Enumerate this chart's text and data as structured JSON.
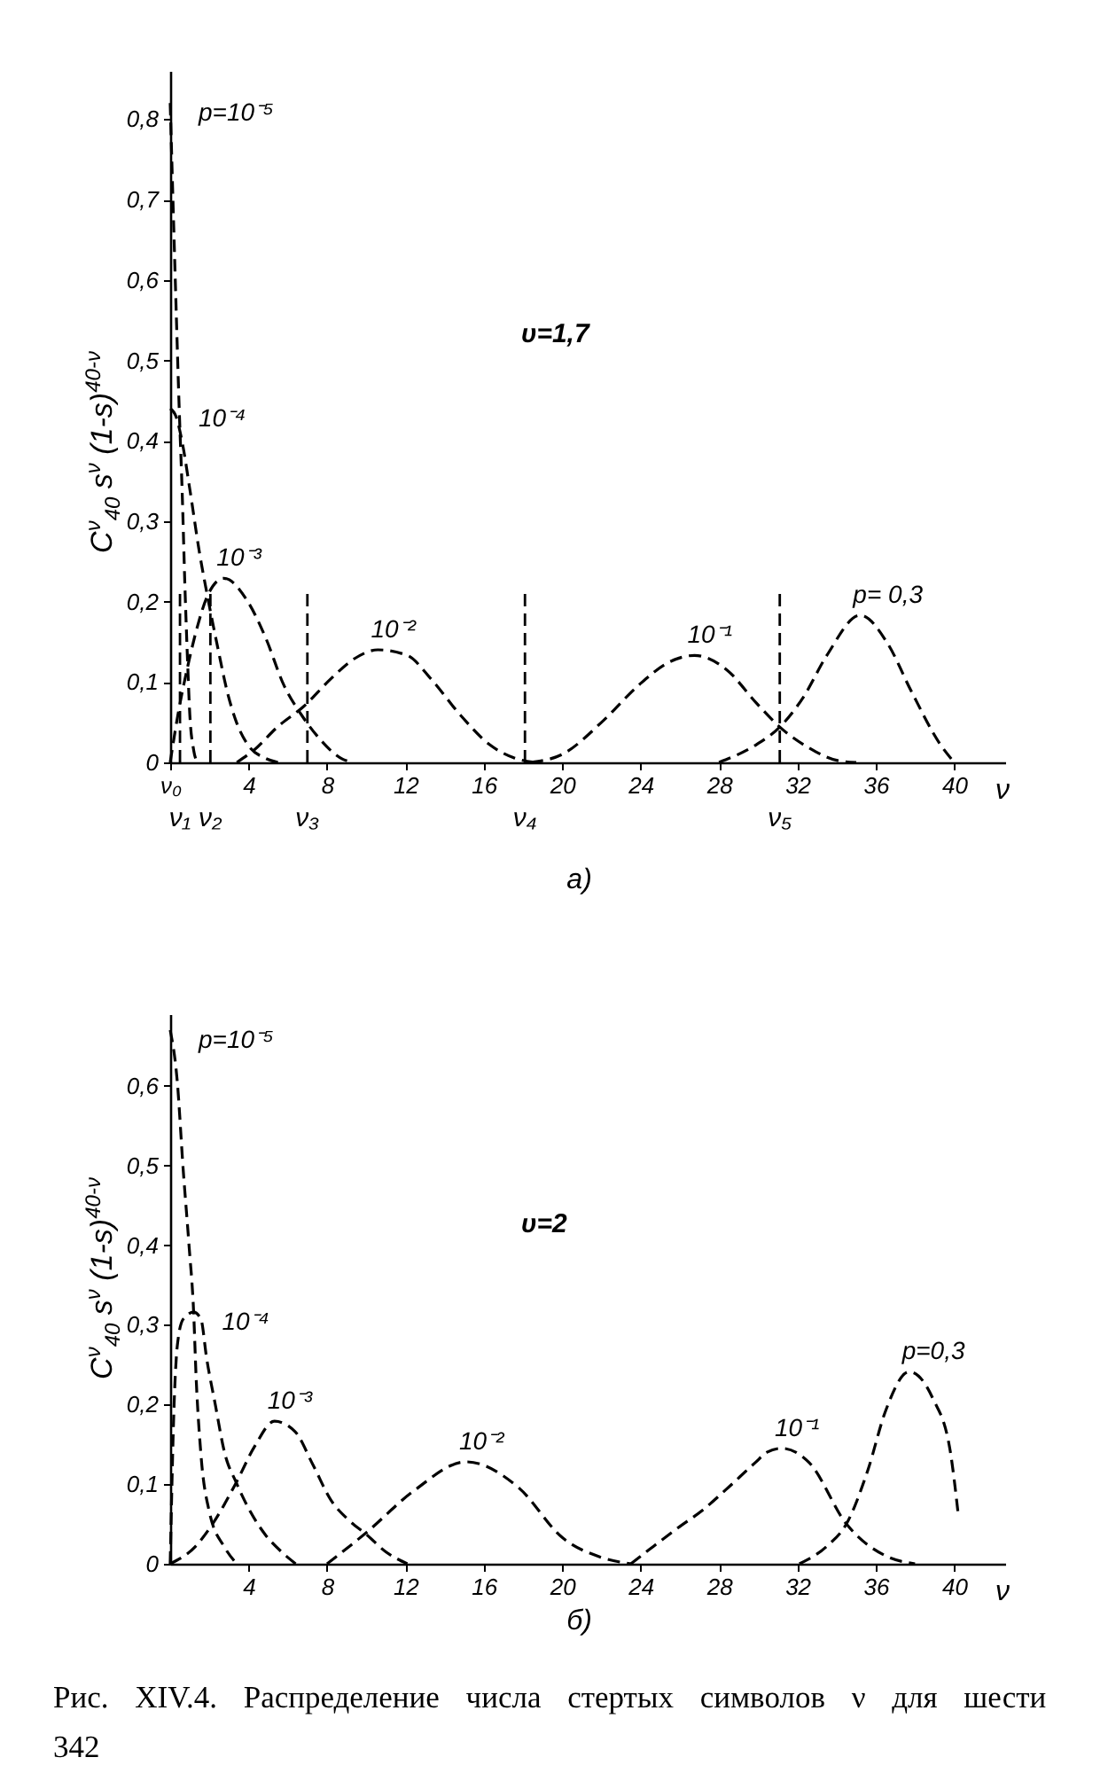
{
  "chart_data": [
    {
      "type": "line",
      "title": "а)",
      "subtitle": "υ=1,7",
      "xlabel": "ν",
      "ylabel": "C$^{ν}$$_{40}$ s$^{ν}$ (1-s)$^{40-ν}$",
      "xlim": [
        0,
        42.6
      ],
      "xticks": [
        {
          "value": 0,
          "label": "ν₀"
        },
        4,
        8,
        12,
        16,
        20,
        24,
        28,
        32,
        36,
        40
      ],
      "ylim": [
        0,
        0.86
      ],
      "yticks": [
        0,
        {
          "value": 0.1,
          "label": "0,1"
        },
        {
          "value": 0.2,
          "label": "0,2"
        },
        {
          "value": 0.3,
          "label": "0,3"
        },
        {
          "value": 0.4,
          "label": "0,4"
        },
        {
          "value": 0.5,
          "label": "0,5"
        },
        {
          "value": 0.6,
          "label": "0,6"
        },
        {
          "value": 0.7,
          "label": "0,7"
        },
        {
          "value": 0.8,
          "label": "0,8"
        }
      ],
      "grid": false,
      "marker": "none",
      "line_style": "dashed",
      "series": [
        {
          "name": "p=10⁻⁵",
          "color": "#000000",
          "x": [
            0,
            0.2,
            0.46,
            0.62,
            0.75,
            0.88,
            1.0,
            1.2,
            1.4
          ],
          "values": [
            0.82,
            0.65,
            0.44,
            0.33,
            0.22,
            0.13,
            0.06,
            0.015,
            0
          ]
        },
        {
          "name": "10⁻⁴",
          "color": "#000000",
          "x": [
            0,
            0.3,
            0.6,
            1.0,
            1.5,
            1.9,
            2.45,
            2.9,
            3.35,
            3.96,
            4.87,
            5.5
          ],
          "values": [
            0.44,
            0.43,
            0.4,
            0.34,
            0.26,
            0.207,
            0.14,
            0.089,
            0.052,
            0.022,
            0.005,
            0
          ]
        },
        {
          "name": "10⁻³",
          "color": "#000000",
          "x": [
            0,
            0.4,
            0.9,
            1.4,
            1.9,
            2.73,
            3.96,
            4.87,
            5.8,
            6.7,
            7.6,
            8.8,
            9.3
          ],
          "values": [
            0,
            0.06,
            0.12,
            0.17,
            0.207,
            0.229,
            0.2,
            0.155,
            0.096,
            0.059,
            0.03,
            0.004,
            0
          ]
        },
        {
          "name": "10⁻²",
          "color": "#000000",
          "x": [
            3.4,
            4.26,
            5.47,
            6.83,
            8.2,
            9.4,
            10.6,
            12.1,
            13.3,
            14.8,
            16.3,
            17.5,
            18.6
          ],
          "values": [
            0,
            0.015,
            0.044,
            0.07,
            0.104,
            0.129,
            0.14,
            0.133,
            0.104,
            0.059,
            0.022,
            0.006,
            0
          ]
        },
        {
          "name": "10⁻¹",
          "color": "#000000",
          "x": [
            18.4,
            20,
            22.1,
            23.9,
            25.4,
            26.75,
            28.4,
            29.9,
            31.1,
            32.6,
            34.1,
            35
          ],
          "values": [
            0,
            0.01,
            0.052,
            0.096,
            0.124,
            0.133,
            0.115,
            0.074,
            0.044,
            0.018,
            0.002,
            0
          ]
        },
        {
          "name": "p= 0,3",
          "color": "#000000",
          "x": [
            28,
            29.9,
            31.1,
            32.3,
            33.5,
            35.2,
            36.6,
            37.8,
            39.3,
            40
          ],
          "values": [
            0,
            0.022,
            0.044,
            0.081,
            0.133,
            0.183,
            0.148,
            0.089,
            0.022,
            0
          ]
        }
      ],
      "ref_lines": [
        {
          "axis": "x",
          "value": 0.5,
          "label": "ν₁",
          "line_style": "dashed"
        },
        {
          "axis": "x",
          "value": 2.05,
          "label": "ν₂",
          "line_style": "dashed"
        },
        {
          "axis": "x",
          "value": 7.0,
          "label": "ν₃",
          "line_style": "dashed"
        },
        {
          "axis": "x",
          "value": 18.1,
          "label": "ν₄",
          "line_style": "dashed"
        },
        {
          "axis": "x",
          "value": 31.1,
          "label": "ν₅",
          "line_style": "dashed"
        }
      ]
    },
    {
      "type": "line",
      "title": "б)",
      "subtitle": "υ=2",
      "ylabel": "C$^{ν}$$_{40}$ s$^{ν}$ (1-s)$^{40-ν}$",
      "xlabel": "ν",
      "xlim": [
        0,
        42.6
      ],
      "xticks": [
        4,
        8,
        12,
        16,
        20,
        24,
        28,
        32,
        36,
        40
      ],
      "ylim": [
        0,
        0.69
      ],
      "yticks": [
        0,
        {
          "value": 0.1,
          "label": "0,1"
        },
        {
          "value": 0.2,
          "label": "0,2"
        },
        {
          "value": 0.3,
          "label": "0,3"
        },
        {
          "value": 0.4,
          "label": "0,4"
        },
        {
          "value": 0.5,
          "label": "0,5"
        },
        {
          "value": 0.6,
          "label": "0,6"
        }
      ],
      "grid": false,
      "marker": "none",
      "line_style": "dashed",
      "series": [
        {
          "name": "p=10⁻⁵",
          "color": "#000000",
          "x": [
            0,
            0.36,
            0.66,
            0.96,
            1.2,
            1.32,
            1.56,
            2.0,
            2.77,
            3.4
          ],
          "values": [
            0.67,
            0.606,
            0.496,
            0.4,
            0.314,
            0.236,
            0.14,
            0.065,
            0.021,
            0
          ]
        },
        {
          "name": "10⁻⁴",
          "color": "#000000",
          "x": [
            0,
            0.2,
            0.36,
            0.66,
            1.2,
            1.57,
            1.86,
            2.3,
            2.77,
            3.37,
            4.1,
            4.87,
            5.77,
            6.4
          ],
          "values": [
            0,
            0.2,
            0.273,
            0.307,
            0.316,
            0.307,
            0.258,
            0.2,
            0.14,
            0.102,
            0.065,
            0.036,
            0.013,
            0
          ]
        },
        {
          "name": "10⁻³",
          "color": "#000000",
          "x": [
            0,
            1.26,
            2.16,
            3.37,
            4.3,
            5.32,
            6.37,
            7.27,
            8.2,
            9.1,
            10.0,
            11.0,
            12.1
          ],
          "values": [
            0,
            0.021,
            0.05,
            0.102,
            0.147,
            0.179,
            0.166,
            0.125,
            0.08,
            0.055,
            0.037,
            0.015,
            0
          ]
        },
        {
          "name": "10⁻²",
          "color": "#000000",
          "x": [
            8.0,
            10.0,
            12.4,
            15.1,
            17.8,
            20.0,
            22,
            23.5
          ],
          "values": [
            0,
            0.039,
            0.091,
            0.128,
            0.095,
            0.033,
            0.008,
            0
          ]
        },
        {
          "name": "10⁻¹",
          "color": "#000000",
          "x": [
            23.5,
            24.45,
            25.9,
            27.15,
            28.35,
            29.85,
            30.45,
            31.2,
            32.6,
            34.5,
            36.5,
            38
          ],
          "values": [
            0,
            0.018,
            0.045,
            0.067,
            0.093,
            0.127,
            0.14,
            0.145,
            0.127,
            0.05,
            0.01,
            0
          ]
        },
        {
          "name": "p=0,3",
          "color": "#000000",
          "x": [
            32.1,
            33.5,
            34.5,
            35.6,
            36.5,
            37.7,
            38.9,
            39.8,
            40.2
          ],
          "values": [
            0,
            0.022,
            0.05,
            0.118,
            0.192,
            0.241,
            0.208,
            0.141,
            0.063
          ]
        }
      ],
      "annotations": [
        "Рис. XIV.4. Распределение числа стертых символов ν для шести",
        "342"
      ]
    }
  ]
}
